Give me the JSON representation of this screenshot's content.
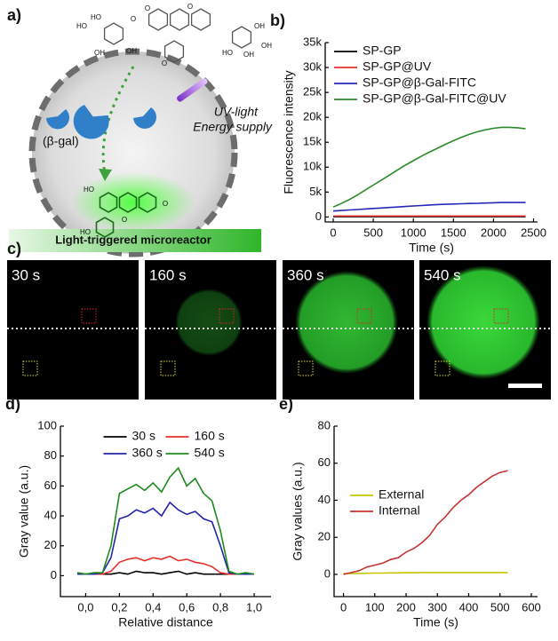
{
  "panels": {
    "a": "a)",
    "c": "c)"
  },
  "diagram": {
    "enzyme_label": "(β-gal)",
    "uv_label": [
      "UV-light",
      "Energy supply"
    ],
    "caption": "Light-triggered microreactor",
    "molecule_labels": [
      "HO",
      "OH",
      "HO",
      "OH",
      "O",
      "O",
      "O",
      "O",
      "HO",
      "OH",
      "OH",
      "OH"
    ],
    "product_labels": [
      "HO",
      "O",
      "HO",
      "O"
    ]
  },
  "micrographs": {
    "times": [
      "30 s",
      "160 s",
      "360 s",
      "540 s"
    ]
  },
  "chart_data": [
    {
      "type": "line",
      "panel": "b)",
      "xlabel": "Time (s)",
      "ylabel": "Fluorescence intensity",
      "xlim": [
        -100,
        2550
      ],
      "ylim": [
        -1000,
        35000
      ],
      "xticks": [
        0,
        500,
        1000,
        1500,
        2000,
        2500
      ],
      "yticks": [
        0,
        {
          "value": 5000,
          "label": "5k"
        },
        {
          "value": 10000,
          "label": "10k"
        },
        {
          "value": 15000,
          "label": "15k"
        },
        {
          "value": 20000,
          "label": "20k"
        },
        {
          "value": 25000,
          "label": "25k"
        },
        {
          "value": 30000,
          "label": "30k"
        },
        {
          "value": 35000,
          "label": "35k"
        }
      ],
      "legend": "upper left",
      "legend_columns": 1,
      "x": [
        0,
        100,
        200,
        300,
        400,
        500,
        600,
        700,
        800,
        900,
        1000,
        1100,
        1200,
        1300,
        1400,
        1500,
        1600,
        1700,
        1800,
        1900,
        2000,
        2100,
        2200,
        2300,
        2400
      ],
      "series": [
        {
          "name": "SP-GP",
          "color": "#000000",
          "values": [
            50,
            50,
            50,
            50,
            50,
            50,
            50,
            50,
            50,
            50,
            50,
            50,
            50,
            50,
            50,
            50,
            50,
            50,
            50,
            50,
            50,
            50,
            50,
            50,
            50
          ]
        },
        {
          "name": "SP-GP@UV",
          "color": "#e8302c",
          "values": [
            200,
            200,
            200,
            200,
            200,
            200,
            200,
            200,
            200,
            200,
            200,
            200,
            200,
            200,
            200,
            200,
            200,
            200,
            200,
            200,
            200,
            200,
            200,
            200,
            200
          ]
        },
        {
          "name": "SP-GP@β-Gal-FITC",
          "color": "#2626b8",
          "values": [
            1200,
            1300,
            1400,
            1500,
            1600,
            1700,
            1800,
            1900,
            2000,
            2100,
            2200,
            2300,
            2400,
            2500,
            2550,
            2600,
            2650,
            2700,
            2750,
            2800,
            2850,
            2900,
            2900,
            2900,
            2900
          ]
        },
        {
          "name": "SP-GP@β-Gal-FITC@UV",
          "color": "#2a8a2a",
          "values": [
            2000,
            2700,
            3500,
            4400,
            5400,
            6400,
            7400,
            8400,
            9400,
            10400,
            11300,
            12200,
            13000,
            13800,
            14600,
            15300,
            16000,
            16600,
            17100,
            17500,
            17800,
            18000,
            18000,
            17900,
            17700
          ]
        }
      ]
    },
    {
      "type": "line",
      "panel": "d)",
      "xlabel": "Relative distance",
      "ylabel": "Gray value (a.u.)",
      "xlim": [
        -0.15,
        1.1
      ],
      "ylim": [
        -14,
        100
      ],
      "xticks": [
        {
          "value": 0,
          "label": "0,0"
        },
        {
          "value": 0.2,
          "label": "0,2"
        },
        {
          "value": 0.4,
          "label": "0,4"
        },
        {
          "value": 0.6,
          "label": "0,6"
        },
        {
          "value": 0.8,
          "label": "0,8"
        },
        {
          "value": 1,
          "label": "1,0"
        }
      ],
      "yticks": [
        0,
        20,
        40,
        60,
        80,
        100
      ],
      "legend": "upper center",
      "legend_columns": 2,
      "x": [
        -0.05,
        0,
        0.05,
        0.1,
        0.15,
        0.2,
        0.25,
        0.3,
        0.35,
        0.4,
        0.45,
        0.5,
        0.55,
        0.6,
        0.65,
        0.7,
        0.75,
        0.8,
        0.85,
        0.9,
        0.95,
        1.0
      ],
      "series": [
        {
          "name": "30 s",
          "color": "#000000",
          "values": [
            1,
            1,
            1,
            1,
            1,
            2,
            1,
            3,
            2,
            2,
            1,
            2,
            3,
            1,
            2,
            1,
            1,
            1,
            1,
            1,
            1,
            1
          ]
        },
        {
          "name": "160 s",
          "color": "#e8302c",
          "values": [
            1,
            1,
            1,
            1,
            3,
            9,
            11,
            12,
            10,
            12,
            11,
            13,
            10,
            11,
            9,
            8,
            6,
            2,
            1,
            1,
            1,
            1
          ]
        },
        {
          "name": "360 s",
          "color": "#2626a8",
          "values": [
            1,
            1,
            1,
            2,
            12,
            38,
            40,
            44,
            42,
            45,
            40,
            49,
            44,
            41,
            43,
            38,
            36,
            20,
            2,
            1,
            1,
            1
          ]
        },
        {
          "name": "540 s",
          "color": "#1f8a1f",
          "values": [
            2,
            1,
            2,
            2,
            20,
            55,
            58,
            61,
            57,
            62,
            56,
            66,
            72,
            60,
            65,
            55,
            50,
            30,
            3,
            1,
            2,
            1
          ]
        }
      ]
    },
    {
      "type": "line",
      "panel": "e)",
      "xlabel": "Time (s)",
      "ylabel": "Gray values (a.u.)",
      "xlim": [
        -30,
        620
      ],
      "ylim": [
        -12,
        80
      ],
      "xticks": [
        0,
        100,
        200,
        300,
        400,
        500,
        600
      ],
      "yticks": [
        0,
        20,
        40,
        60,
        80
      ],
      "legend": "center left",
      "legend_columns": 1,
      "x": [
        0,
        25,
        50,
        75,
        100,
        125,
        150,
        175,
        200,
        225,
        250,
        275,
        300,
        325,
        350,
        375,
        400,
        425,
        450,
        475,
        500,
        525
      ],
      "series": [
        {
          "name": "External",
          "color": "#c8c400",
          "values": [
            0.5,
            0.5,
            0.5,
            0.6,
            0.7,
            0.7,
            0.8,
            0.8,
            0.9,
            0.9,
            1,
            1,
            1,
            1,
            1,
            1,
            1,
            1,
            1,
            1,
            1,
            1
          ]
        },
        {
          "name": "Internal",
          "color": "#c83232",
          "values": [
            0,
            1,
            2,
            4,
            5,
            6,
            8,
            9,
            12,
            14,
            17,
            21,
            27,
            31,
            36,
            40,
            43,
            47,
            50,
            53,
            55,
            56
          ]
        }
      ]
    }
  ]
}
